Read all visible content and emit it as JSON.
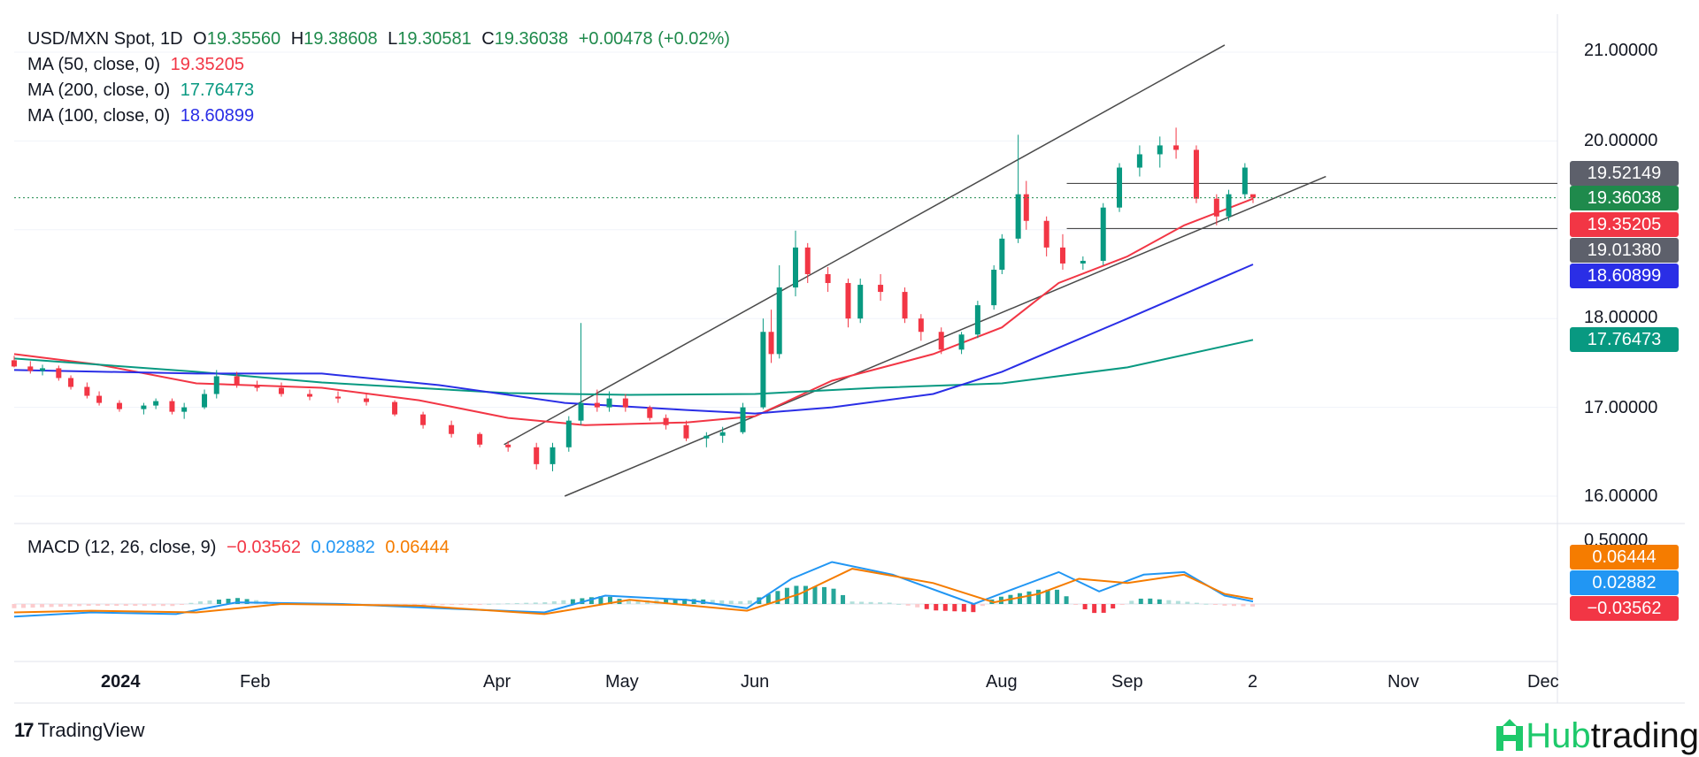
{
  "header": {
    "symbol": "USD/MXN Spot, 1D",
    "o_label": "O",
    "o": "19.35560",
    "h_label": "H",
    "h": "19.38608",
    "l_label": "L",
    "l": "19.30581",
    "c_label": "C",
    "c": "19.36038",
    "change": "+0.00478 (+0.02%)"
  },
  "indicators": [
    {
      "label": "MA (50, close, 0)",
      "value": "19.35205",
      "color": "#f23645"
    },
    {
      "label": "MA (200, close, 0)",
      "value": "17.76473",
      "color": "#089981"
    },
    {
      "label": "MA (100, close, 0)",
      "value": "18.60899",
      "color": "#2a2ee6"
    }
  ],
  "macd": {
    "label": "MACD (12, 26, close, 9)",
    "hist": "−0.03562",
    "macd": "0.02882",
    "signal": "0.06444",
    "hist_color": "#f23645",
    "macd_color": "#2196f3",
    "signal_color": "#f57c00"
  },
  "price_axis": [
    "21.00000",
    "20.00000",
    "18.00000",
    "17.00000",
    "16.00000"
  ],
  "macd_axis": [
    "0.50000"
  ],
  "price_tags": [
    {
      "value": "19.52149",
      "color": "#5d606b"
    },
    {
      "value": "19.36038",
      "color": "#1f8a4c"
    },
    {
      "value": "19.35205",
      "color": "#f23645"
    },
    {
      "value": "19.01380",
      "color": "#5d606b"
    },
    {
      "value": "18.60899",
      "color": "#2a2ee6"
    },
    {
      "value": "17.76473",
      "color": "#089981"
    }
  ],
  "macd_tags": [
    {
      "value": "0.06444",
      "color": "#f57c00"
    },
    {
      "value": "0.02882",
      "color": "#2196f3"
    },
    {
      "value": "−0.03562",
      "color": "#f23645"
    }
  ],
  "time_axis": [
    "2024",
    "Feb",
    "Apr",
    "May",
    "Jun",
    "Aug",
    "Sep",
    "2",
    "Nov",
    "Dec"
  ],
  "branding": {
    "tradingview": "TradingView",
    "hub_prefix": "Hub",
    "hub_suffix": "trading"
  },
  "chart_data": {
    "type": "candlestick",
    "title": "USD/MXN Spot, 1D",
    "ylim": [
      15.7,
      21.4
    ],
    "last_close": 19.36038,
    "horizontal_levels": [
      19.52149,
      19.0138
    ],
    "series": [
      {
        "name": "MA (50, close, 0)",
        "color": "#f23645",
        "points": [
          [
            "2023-12-01",
            17.6
          ],
          [
            "2023-12-22",
            17.48
          ],
          [
            "2024-01-15",
            17.27
          ],
          [
            "2024-02-15",
            17.22
          ],
          [
            "2024-03-10",
            17.08
          ],
          [
            "2024-04-01",
            16.88
          ],
          [
            "2024-04-20",
            16.8
          ],
          [
            "2024-05-15",
            16.83
          ],
          [
            "2024-06-01",
            16.9
          ],
          [
            "2024-06-20",
            17.3
          ],
          [
            "2024-07-15",
            17.6
          ],
          [
            "2024-08-01",
            17.9
          ],
          [
            "2024-08-15",
            18.4
          ],
          [
            "2024-09-01",
            18.7
          ],
          [
            "2024-09-15",
            19.05
          ],
          [
            "2024-10-02",
            19.35
          ]
        ]
      },
      {
        "name": "MA (200, close, 0)",
        "color": "#089981",
        "points": [
          [
            "2023-12-01",
            17.55
          ],
          [
            "2024-01-15",
            17.4
          ],
          [
            "2024-02-15",
            17.28
          ],
          [
            "2024-04-01",
            17.16
          ],
          [
            "2024-05-01",
            17.14
          ],
          [
            "2024-06-01",
            17.15
          ],
          [
            "2024-07-01",
            17.22
          ],
          [
            "2024-08-01",
            17.27
          ],
          [
            "2024-09-01",
            17.45
          ],
          [
            "2024-10-02",
            17.76
          ]
        ]
      },
      {
        "name": "MA (100, close, 0)",
        "color": "#2a2ee6",
        "points": [
          [
            "2023-12-01",
            17.42
          ],
          [
            "2024-01-15",
            17.38
          ],
          [
            "2024-02-15",
            17.38
          ],
          [
            "2024-03-15",
            17.25
          ],
          [
            "2024-04-15",
            17.05
          ],
          [
            "2024-05-15",
            16.97
          ],
          [
            "2024-06-01",
            16.93
          ],
          [
            "2024-06-20",
            17.0
          ],
          [
            "2024-07-15",
            17.15
          ],
          [
            "2024-08-01",
            17.4
          ],
          [
            "2024-09-01",
            18.0
          ],
          [
            "2024-10-02",
            18.61
          ]
        ]
      }
    ],
    "trendlines": [
      {
        "from": [
          "2024-03-31",
          16.58
        ],
        "to": [
          "2024-09-25",
          21.08
        ]
      },
      {
        "from": [
          "2024-04-15",
          16.0
        ],
        "to": [
          "2024-10-20",
          19.6
        ]
      }
    ],
    "candles": [
      [
        "2023-12-01",
        17.53,
        17.58,
        17.45,
        17.46
      ],
      [
        "2023-12-05",
        17.46,
        17.52,
        17.38,
        17.41
      ],
      [
        "2023-12-08",
        17.41,
        17.48,
        17.36,
        17.44
      ],
      [
        "2023-12-12",
        17.44,
        17.47,
        17.3,
        17.33
      ],
      [
        "2023-12-15",
        17.33,
        17.36,
        17.2,
        17.23
      ],
      [
        "2023-12-19",
        17.23,
        17.28,
        17.1,
        17.13
      ],
      [
        "2023-12-22",
        17.13,
        17.18,
        17.02,
        17.05
      ],
      [
        "2023-12-27",
        17.05,
        17.08,
        16.95,
        16.98
      ],
      [
        "2024-01-02",
        16.98,
        17.05,
        16.92,
        17.02
      ],
      [
        "2024-01-05",
        17.02,
        17.1,
        16.98,
        17.07
      ],
      [
        "2024-01-09",
        17.07,
        17.1,
        16.92,
        16.95
      ],
      [
        "2024-01-12",
        16.95,
        17.05,
        16.87,
        17.0
      ],
      [
        "2024-01-17",
        17.0,
        17.2,
        16.98,
        17.15
      ],
      [
        "2024-01-20",
        17.15,
        17.42,
        17.1,
        17.35
      ],
      [
        "2024-01-25",
        17.35,
        17.4,
        17.22,
        17.25
      ],
      [
        "2024-01-30",
        17.25,
        17.3,
        17.18,
        17.22
      ],
      [
        "2024-02-05",
        17.22,
        17.28,
        17.12,
        17.15
      ],
      [
        "2024-02-12",
        17.15,
        17.2,
        17.08,
        17.12
      ],
      [
        "2024-02-19",
        17.12,
        17.18,
        17.05,
        17.1
      ],
      [
        "2024-02-26",
        17.1,
        17.15,
        17.02,
        17.06
      ],
      [
        "2024-03-04",
        17.06,
        17.08,
        16.9,
        16.92
      ],
      [
        "2024-03-11",
        16.92,
        16.95,
        16.76,
        16.8
      ],
      [
        "2024-03-18",
        16.8,
        16.85,
        16.66,
        16.7
      ],
      [
        "2024-03-25",
        16.7,
        16.72,
        16.55,
        16.58
      ],
      [
        "2024-04-01",
        16.58,
        16.62,
        16.5,
        16.55
      ],
      [
        "2024-04-08",
        16.55,
        16.6,
        16.3,
        16.36
      ],
      [
        "2024-04-12",
        16.36,
        16.6,
        16.28,
        16.55
      ],
      [
        "2024-04-16",
        16.55,
        16.9,
        16.5,
        16.85
      ],
      [
        "2024-04-19",
        16.85,
        17.95,
        16.8,
        17.05
      ],
      [
        "2024-04-23",
        17.05,
        17.2,
        16.95,
        17.0
      ],
      [
        "2024-04-26",
        17.0,
        17.18,
        16.95,
        17.1
      ],
      [
        "2024-04-30",
        17.1,
        17.15,
        16.95,
        17.0
      ],
      [
        "2024-05-06",
        17.0,
        17.02,
        16.85,
        16.88
      ],
      [
        "2024-05-10",
        16.88,
        16.92,
        16.75,
        16.8
      ],
      [
        "2024-05-15",
        16.8,
        16.85,
        16.62,
        16.65
      ],
      [
        "2024-05-20",
        16.65,
        16.72,
        16.55,
        16.68
      ],
      [
        "2024-05-24",
        16.68,
        16.78,
        16.6,
        16.72
      ],
      [
        "2024-05-29",
        16.72,
        17.05,
        16.7,
        17.0
      ],
      [
        "2024-06-03",
        17.0,
        18.0,
        16.98,
        17.85
      ],
      [
        "2024-06-05",
        17.85,
        18.1,
        17.5,
        17.6
      ],
      [
        "2024-06-07",
        17.6,
        18.6,
        17.55,
        18.35
      ],
      [
        "2024-06-11",
        18.35,
        18.99,
        18.25,
        18.8
      ],
      [
        "2024-06-14",
        18.8,
        18.85,
        18.4,
        18.5
      ],
      [
        "2024-06-19",
        18.5,
        18.58,
        18.3,
        18.4
      ],
      [
        "2024-06-24",
        18.4,
        18.45,
        17.9,
        18.0
      ],
      [
        "2024-06-27",
        18.0,
        18.45,
        17.95,
        18.38
      ],
      [
        "2024-07-02",
        18.38,
        18.5,
        18.2,
        18.3
      ],
      [
        "2024-07-08",
        18.3,
        18.35,
        17.95,
        18.0
      ],
      [
        "2024-07-12",
        18.0,
        18.05,
        17.75,
        17.85
      ],
      [
        "2024-07-17",
        17.85,
        17.9,
        17.6,
        17.65
      ],
      [
        "2024-07-22",
        17.65,
        17.85,
        17.6,
        17.82
      ],
      [
        "2024-07-26",
        17.82,
        18.2,
        17.78,
        18.15
      ],
      [
        "2024-07-30",
        18.15,
        18.6,
        18.1,
        18.55
      ],
      [
        "2024-08-01",
        18.55,
        18.95,
        18.5,
        18.9
      ],
      [
        "2024-08-05",
        18.9,
        20.07,
        18.85,
        19.4
      ],
      [
        "2024-08-07",
        19.4,
        19.55,
        19.0,
        19.1
      ],
      [
        "2024-08-12",
        19.1,
        19.15,
        18.7,
        18.8
      ],
      [
        "2024-08-16",
        18.8,
        18.95,
        18.55,
        18.62
      ],
      [
        "2024-08-21",
        18.62,
        18.7,
        18.55,
        18.65
      ],
      [
        "2024-08-26",
        18.65,
        19.3,
        18.6,
        19.25
      ],
      [
        "2024-08-30",
        19.25,
        19.75,
        19.2,
        19.7
      ],
      [
        "2024-09-04",
        19.7,
        19.95,
        19.6,
        19.85
      ],
      [
        "2024-09-09",
        19.85,
        20.05,
        19.7,
        19.95
      ],
      [
        "2024-09-13",
        19.95,
        20.15,
        19.8,
        19.9
      ],
      [
        "2024-09-18",
        19.9,
        19.95,
        19.3,
        19.35
      ],
      [
        "2024-09-23",
        19.35,
        19.4,
        19.05,
        19.15
      ],
      [
        "2024-09-26",
        19.15,
        19.45,
        19.1,
        19.4
      ],
      [
        "2024-09-30",
        19.4,
        19.75,
        19.35,
        19.7
      ],
      [
        "2024-10-02",
        19.4,
        19.38,
        19.3,
        19.36
      ]
    ]
  }
}
